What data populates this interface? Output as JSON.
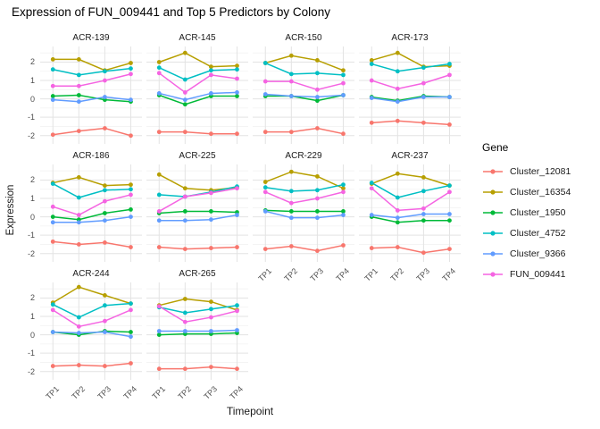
{
  "title": "Expression of FUN_009441 and Top 5 Predictors by Colony",
  "legend": {
    "title": "Gene"
  },
  "chart_data": {
    "type": "line",
    "x": [
      "TP1",
      "TP2",
      "TP3",
      "TP4"
    ],
    "xlabel": "Timepoint",
    "ylabel": "Expression",
    "ylim": [
      -2.45,
      2.85
    ],
    "yticks": [
      2,
      1,
      0,
      -1,
      -2
    ],
    "grid": true,
    "legend_position": "right",
    "genes": [
      {
        "name": "Cluster_12081",
        "color": "#F8766D"
      },
      {
        "name": "Cluster_16354",
        "color": "#B79F00"
      },
      {
        "name": "Cluster_1950",
        "color": "#00BA38"
      },
      {
        "name": "Cluster_4752",
        "color": "#00BFC4"
      },
      {
        "name": "Cluster_9366",
        "color": "#619CFF"
      },
      {
        "name": "FUN_009441",
        "color": "#F564E2"
      }
    ],
    "facets": [
      {
        "colony": "ACR-139",
        "series": {
          "Cluster_12081": [
            -1.95,
            -1.75,
            -1.6,
            -2.0
          ],
          "Cluster_16354": [
            2.15,
            2.15,
            1.55,
            1.95
          ],
          "Cluster_1950": [
            0.15,
            0.2,
            -0.05,
            -0.15
          ],
          "Cluster_4752": [
            1.6,
            1.3,
            1.5,
            1.65
          ],
          "Cluster_9366": [
            -0.05,
            -0.15,
            0.1,
            -0.05
          ],
          "FUN_009441": [
            0.7,
            0.7,
            1.0,
            1.35
          ]
        }
      },
      {
        "colony": "ACR-145",
        "series": {
          "Cluster_12081": [
            -1.8,
            -1.8,
            -1.9,
            -1.9
          ],
          "Cluster_16354": [
            2.0,
            2.5,
            1.75,
            1.8
          ],
          "Cluster_1950": [
            0.2,
            -0.3,
            0.15,
            0.15
          ],
          "Cluster_4752": [
            1.7,
            1.05,
            1.55,
            1.6
          ],
          "Cluster_9366": [
            0.3,
            -0.05,
            0.3,
            0.35
          ],
          "FUN_009441": [
            1.4,
            0.35,
            1.3,
            1.1
          ]
        }
      },
      {
        "colony": "ACR-150",
        "series": {
          "Cluster_12081": [
            -1.8,
            -1.8,
            -1.6,
            -1.9
          ],
          "Cluster_16354": [
            1.95,
            2.35,
            2.1,
            1.55
          ],
          "Cluster_1950": [
            0.15,
            0.15,
            -0.1,
            0.2
          ],
          "Cluster_4752": [
            1.95,
            1.35,
            1.4,
            1.3
          ],
          "Cluster_9366": [
            0.25,
            0.15,
            0.1,
            0.2
          ],
          "FUN_009441": [
            0.95,
            0.95,
            0.5,
            0.85
          ]
        }
      },
      {
        "colony": "ACR-173",
        "series": {
          "Cluster_12081": [
            -1.3,
            -1.2,
            -1.3,
            -1.4
          ],
          "Cluster_16354": [
            2.1,
            2.5,
            1.75,
            1.8
          ],
          "Cluster_1950": [
            0.1,
            -0.1,
            0.15,
            0.1
          ],
          "Cluster_4752": [
            1.9,
            1.5,
            1.7,
            1.9
          ],
          "Cluster_9366": [
            0.05,
            -0.15,
            0.1,
            0.1
          ],
          "FUN_009441": [
            1.0,
            0.55,
            0.85,
            1.3
          ]
        }
      },
      {
        "colony": "ACR-186",
        "series": {
          "Cluster_12081": [
            -1.35,
            -1.5,
            -1.4,
            -1.65
          ],
          "Cluster_16354": [
            1.85,
            2.15,
            1.7,
            1.75
          ],
          "Cluster_1950": [
            0.0,
            -0.15,
            0.2,
            0.4
          ],
          "Cluster_4752": [
            1.8,
            1.05,
            1.45,
            1.5
          ],
          "Cluster_9366": [
            -0.3,
            -0.3,
            -0.2,
            0.0
          ],
          "FUN_009441": [
            0.55,
            0.1,
            0.85,
            1.2
          ]
        }
      },
      {
        "colony": "ACR-225",
        "series": {
          "Cluster_12081": [
            -1.65,
            -1.75,
            -1.7,
            -1.65
          ],
          "Cluster_16354": [
            2.3,
            1.55,
            1.45,
            1.6
          ],
          "Cluster_1950": [
            0.2,
            0.3,
            0.3,
            0.25
          ],
          "Cluster_4752": [
            1.2,
            1.1,
            1.35,
            1.65
          ],
          "Cluster_9366": [
            -0.2,
            -0.2,
            -0.15,
            0.1
          ],
          "FUN_009441": [
            0.3,
            1.1,
            1.3,
            1.55
          ]
        }
      },
      {
        "colony": "ACR-229",
        "series": {
          "Cluster_12081": [
            -1.75,
            -1.6,
            -1.85,
            -1.55
          ],
          "Cluster_16354": [
            1.9,
            2.45,
            2.2,
            1.55
          ],
          "Cluster_1950": [
            0.35,
            0.3,
            0.3,
            0.3
          ],
          "Cluster_4752": [
            1.6,
            1.4,
            1.45,
            1.75
          ],
          "Cluster_9366": [
            0.3,
            -0.05,
            -0.05,
            0.1
          ],
          "FUN_009441": [
            1.35,
            0.75,
            1.0,
            1.35
          ]
        }
      },
      {
        "colony": "ACR-237",
        "series": {
          "Cluster_12081": [
            -1.7,
            -1.65,
            -1.95,
            -1.75
          ],
          "Cluster_16354": [
            1.8,
            2.35,
            2.15,
            1.7
          ],
          "Cluster_1950": [
            0.0,
            -0.3,
            -0.2,
            -0.2
          ],
          "Cluster_4752": [
            1.85,
            1.05,
            1.4,
            1.7
          ],
          "Cluster_9366": [
            0.1,
            -0.05,
            0.15,
            0.15
          ],
          "FUN_009441": [
            1.55,
            0.35,
            0.45,
            1.35
          ]
        }
      },
      {
        "colony": "ACR-244",
        "series": {
          "Cluster_12081": [
            -1.7,
            -1.65,
            -1.7,
            -1.55
          ],
          "Cluster_16354": [
            1.75,
            2.6,
            2.15,
            1.7
          ],
          "Cluster_1950": [
            0.15,
            0.0,
            0.2,
            0.15
          ],
          "Cluster_4752": [
            1.65,
            0.95,
            1.6,
            1.7
          ],
          "Cluster_9366": [
            0.15,
            0.1,
            0.15,
            -0.1
          ],
          "FUN_009441": [
            1.35,
            0.45,
            0.75,
            1.35
          ]
        }
      },
      {
        "colony": "ACR-265",
        "series": {
          "Cluster_12081": [
            -1.85,
            -1.85,
            -1.75,
            -1.85
          ],
          "Cluster_16354": [
            1.6,
            1.95,
            1.8,
            1.35
          ],
          "Cluster_1950": [
            0.0,
            0.05,
            0.05,
            0.1
          ],
          "Cluster_4752": [
            1.5,
            1.2,
            1.4,
            1.6
          ],
          "Cluster_9366": [
            0.2,
            0.2,
            0.2,
            0.25
          ],
          "FUN_009441": [
            1.55,
            0.7,
            0.95,
            1.3
          ]
        }
      }
    ]
  }
}
